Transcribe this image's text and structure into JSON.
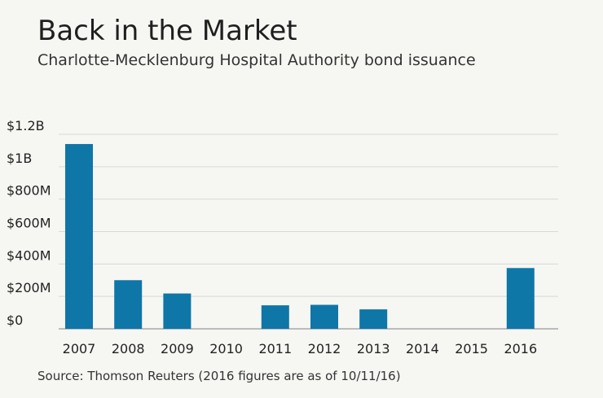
{
  "header": {
    "title": "Back in the Market",
    "subtitle": "Charlotte-Mecklenburg Hospital Authority bond issuance"
  },
  "footer": {
    "source": "Source: Thomson Reuters (2016 figures are as of 10/11/16)"
  },
  "colors": {
    "bar": "#0f76a8",
    "grid": "#d8d8d8",
    "axis": "#9a9a9a",
    "background": "#f6f6f3"
  },
  "chart_data": {
    "type": "bar",
    "title": "Back in the Market",
    "subtitle": "Charlotte-Mecklenburg Hospital Authority bond issuance",
    "categories": [
      "2007",
      "2008",
      "2009",
      "2010",
      "2011",
      "2012",
      "2013",
      "2014",
      "2015",
      "2016"
    ],
    "values": [
      1140,
      300,
      218,
      0,
      145,
      148,
      120,
      0,
      0,
      375
    ],
    "value_unit": "$M",
    "ylim": [
      0,
      1200
    ],
    "yticks": [
      0,
      200,
      400,
      600,
      800,
      1000,
      1200
    ],
    "ytick_labels": [
      "$0",
      "$200M",
      "$400M",
      "$600M",
      "$800M",
      "$1B",
      "$1.2B"
    ],
    "grid": true,
    "legend": "none",
    "xlabel": "",
    "ylabel": ""
  }
}
